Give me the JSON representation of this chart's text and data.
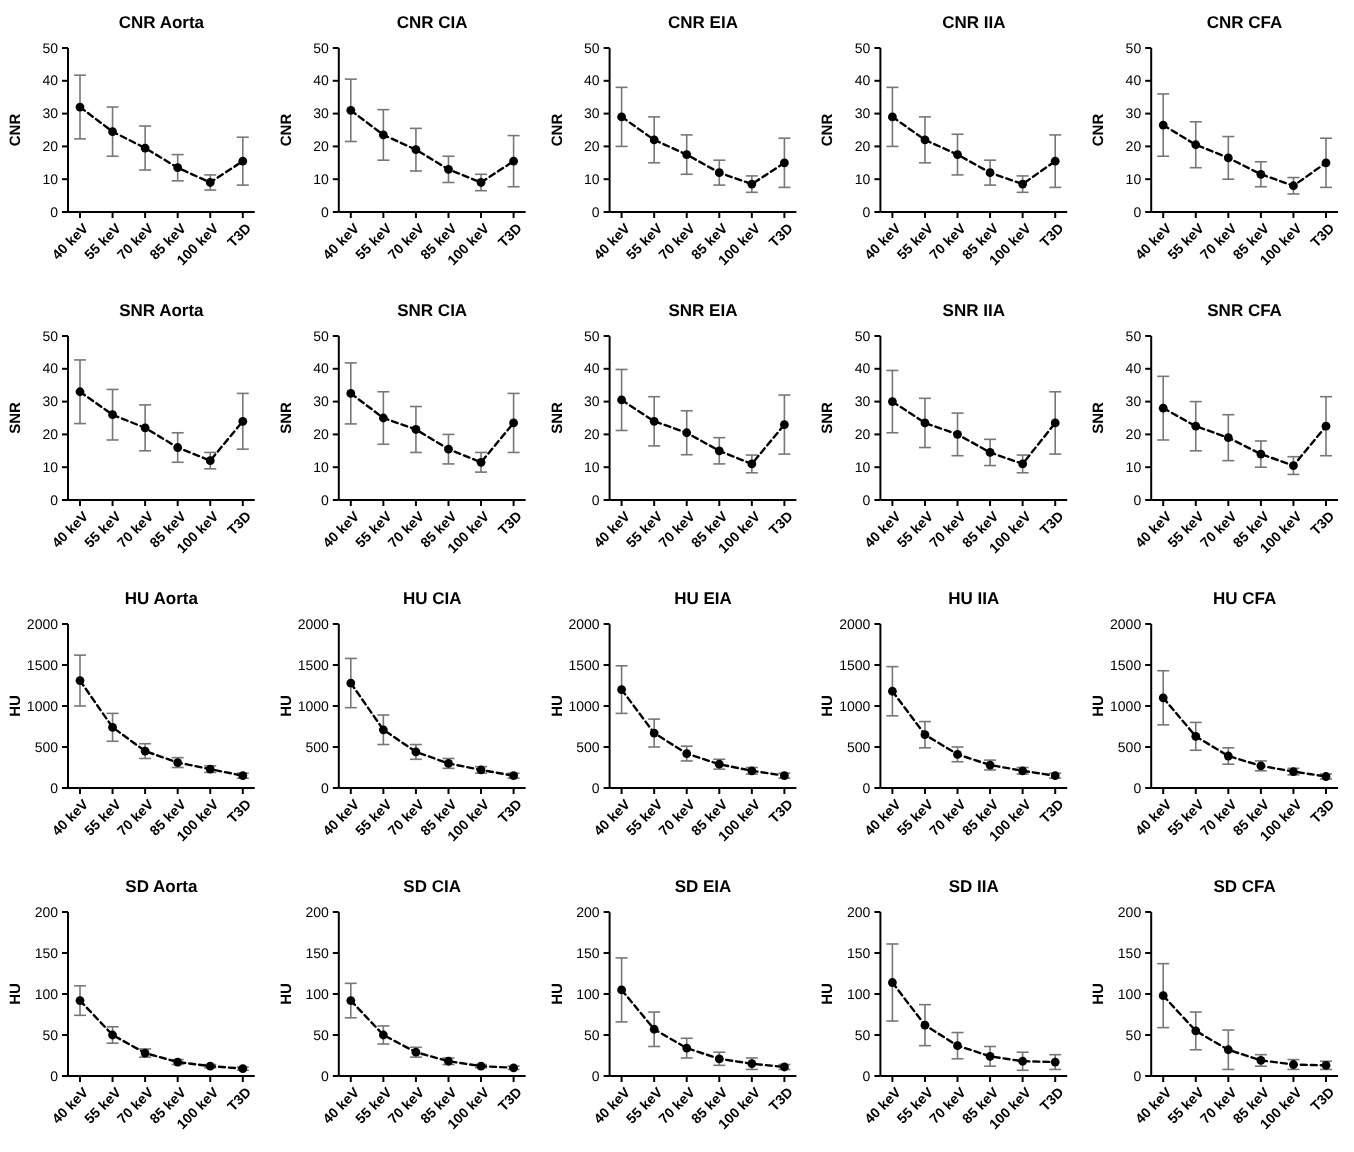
{
  "chart_data": [
    {
      "type": "line",
      "title": "CNR Aorta",
      "ylabel": "CNR",
      "categories": [
        "40 keV",
        "55 keV",
        "70 keV",
        "85 keV",
        "100 keV",
        "T3D"
      ],
      "ylim": [
        0,
        50
      ],
      "yticks": [
        0,
        10,
        20,
        30,
        40,
        50
      ],
      "color": "#000000",
      "marker": "circle",
      "line_style": "dashed",
      "values": [
        32,
        24.5,
        19.5,
        13.5,
        9,
        15.5
      ],
      "errors": [
        9.7,
        7.5,
        6.7,
        4,
        2.3,
        7.3
      ]
    },
    {
      "type": "line",
      "title": "CNR CIA",
      "ylabel": "CNR",
      "categories": [
        "40 keV",
        "55 keV",
        "70 keV",
        "85 keV",
        "100 keV",
        "T3D"
      ],
      "ylim": [
        0,
        50
      ],
      "yticks": [
        0,
        10,
        20,
        30,
        40,
        50
      ],
      "color": "#000000",
      "marker": "circle",
      "line_style": "dashed",
      "values": [
        31,
        23.5,
        19,
        13,
        9,
        15.5
      ],
      "errors": [
        9.5,
        7.7,
        6.5,
        4,
        2.5,
        7.8
      ]
    },
    {
      "type": "line",
      "title": "CNR EIA",
      "ylabel": "CNR",
      "categories": [
        "40 keV",
        "55 keV",
        "70 keV",
        "85 keV",
        "100 keV",
        "T3D"
      ],
      "ylim": [
        0,
        50
      ],
      "yticks": [
        0,
        10,
        20,
        30,
        40,
        50
      ],
      "color": "#000000",
      "marker": "circle",
      "line_style": "dashed",
      "values": [
        29,
        22,
        17.5,
        12,
        8.5,
        15
      ],
      "errors": [
        9,
        7,
        6,
        3.8,
        2.5,
        7.5
      ]
    },
    {
      "type": "line",
      "title": "CNR IIA",
      "ylabel": "CNR",
      "categories": [
        "40 keV",
        "55 keV",
        "70 keV",
        "85 keV",
        "100 keV",
        "T3D"
      ],
      "ylim": [
        0,
        50
      ],
      "yticks": [
        0,
        10,
        20,
        30,
        40,
        50
      ],
      "color": "#000000",
      "marker": "circle",
      "line_style": "dashed",
      "values": [
        29,
        22,
        17.5,
        12,
        8.5,
        15.5
      ],
      "errors": [
        9,
        7,
        6.2,
        3.8,
        2.5,
        8
      ]
    },
    {
      "type": "line",
      "title": "CNR CFA",
      "ylabel": "CNR",
      "categories": [
        "40 keV",
        "55 keV",
        "70 keV",
        "85 keV",
        "100 keV",
        "T3D"
      ],
      "ylim": [
        0,
        50
      ],
      "yticks": [
        0,
        10,
        20,
        30,
        40,
        50
      ],
      "color": "#000000",
      "marker": "circle",
      "line_style": "dashed",
      "values": [
        26.5,
        20.5,
        16.5,
        11.5,
        8,
        15
      ],
      "errors": [
        9.5,
        7,
        6.5,
        3.8,
        2.5,
        7.5
      ]
    },
    {
      "type": "line",
      "title": "SNR Aorta",
      "ylabel": "SNR",
      "categories": [
        "40 keV",
        "55 keV",
        "70 keV",
        "85 keV",
        "100 keV",
        "T3D"
      ],
      "ylim": [
        0,
        50
      ],
      "yticks": [
        0,
        10,
        20,
        30,
        40,
        50
      ],
      "color": "#000000",
      "marker": "circle",
      "line_style": "dashed",
      "values": [
        33,
        26,
        22,
        16,
        12,
        24
      ],
      "errors": [
        9.7,
        7.7,
        7,
        4.5,
        2.5,
        8.5
      ]
    },
    {
      "type": "line",
      "title": "SNR CIA",
      "ylabel": "SNR",
      "categories": [
        "40 keV",
        "55 keV",
        "70 keV",
        "85 keV",
        "100 keV",
        "T3D"
      ],
      "ylim": [
        0,
        50
      ],
      "yticks": [
        0,
        10,
        20,
        30,
        40,
        50
      ],
      "color": "#000000",
      "marker": "circle",
      "line_style": "dashed",
      "values": [
        32.5,
        25,
        21.5,
        15.5,
        11.5,
        23.5
      ],
      "errors": [
        9.3,
        8,
        7,
        4.5,
        3,
        9
      ]
    },
    {
      "type": "line",
      "title": "SNR EIA",
      "ylabel": "SNR",
      "categories": [
        "40 keV",
        "55 keV",
        "70 keV",
        "85 keV",
        "100 keV",
        "T3D"
      ],
      "ylim": [
        0,
        50
      ],
      "yticks": [
        0,
        10,
        20,
        30,
        40,
        50
      ],
      "color": "#000000",
      "marker": "circle",
      "line_style": "dashed",
      "values": [
        30.5,
        24,
        20.5,
        15,
        11,
        23
      ],
      "errors": [
        9.3,
        7.5,
        6.7,
        4,
        2.7,
        9
      ]
    },
    {
      "type": "line",
      "title": "SNR IIA",
      "ylabel": "SNR",
      "categories": [
        "40 keV",
        "55 keV",
        "70 keV",
        "85 keV",
        "100 keV",
        "T3D"
      ],
      "ylim": [
        0,
        50
      ],
      "yticks": [
        0,
        10,
        20,
        30,
        40,
        50
      ],
      "color": "#000000",
      "marker": "circle",
      "line_style": "dashed",
      "values": [
        30,
        23.5,
        20,
        14.5,
        11,
        23.5
      ],
      "errors": [
        9.5,
        7.5,
        6.5,
        4,
        2.7,
        9.5
      ]
    },
    {
      "type": "line",
      "title": "SNR CFA",
      "ylabel": "SNR",
      "categories": [
        "40 keV",
        "55 keV",
        "70 keV",
        "85 keV",
        "100 keV",
        "T3D"
      ],
      "ylim": [
        0,
        50
      ],
      "yticks": [
        0,
        10,
        20,
        30,
        40,
        50
      ],
      "color": "#000000",
      "marker": "circle",
      "line_style": "dashed",
      "values": [
        28,
        22.5,
        19,
        14,
        10.5,
        22.5
      ],
      "errors": [
        9.7,
        7.5,
        7,
        4,
        2.7,
        9
      ]
    },
    {
      "type": "line",
      "title": "HU Aorta",
      "ylabel": "HU",
      "categories": [
        "40 keV",
        "55 keV",
        "70 keV",
        "85 keV",
        "100 keV",
        "T3D"
      ],
      "ylim": [
        0,
        2000
      ],
      "yticks": [
        0,
        500,
        1000,
        1500,
        2000
      ],
      "color": "#000000",
      "marker": "circle",
      "line_style": "dashed",
      "values": [
        1310,
        740,
        450,
        310,
        230,
        150
      ],
      "errors": [
        310,
        170,
        90,
        60,
        40,
        30
      ]
    },
    {
      "type": "line",
      "title": "HU CIA",
      "ylabel": "HU",
      "categories": [
        "40 keV",
        "55 keV",
        "70 keV",
        "85 keV",
        "100 keV",
        "T3D"
      ],
      "ylim": [
        0,
        2000
      ],
      "yticks": [
        0,
        500,
        1000,
        1500,
        2000
      ],
      "color": "#000000",
      "marker": "circle",
      "line_style": "dashed",
      "values": [
        1280,
        710,
        440,
        300,
        220,
        150
      ],
      "errors": [
        300,
        180,
        90,
        60,
        40,
        30
      ]
    },
    {
      "type": "line",
      "title": "HU EIA",
      "ylabel": "HU",
      "categories": [
        "40 keV",
        "55 keV",
        "70 keV",
        "85 keV",
        "100 keV",
        "T3D"
      ],
      "ylim": [
        0,
        2000
      ],
      "yticks": [
        0,
        500,
        1000,
        1500,
        2000
      ],
      "color": "#000000",
      "marker": "circle",
      "line_style": "dashed",
      "values": [
        1200,
        670,
        420,
        290,
        210,
        150
      ],
      "errors": [
        290,
        170,
        90,
        60,
        40,
        30
      ]
    },
    {
      "type": "line",
      "title": "HU IIA",
      "ylabel": "HU",
      "categories": [
        "40 keV",
        "55 keV",
        "70 keV",
        "85 keV",
        "100 keV",
        "T3D"
      ],
      "ylim": [
        0,
        2000
      ],
      "yticks": [
        0,
        500,
        1000,
        1500,
        2000
      ],
      "color": "#000000",
      "marker": "circle",
      "line_style": "dashed",
      "values": [
        1180,
        650,
        410,
        280,
        210,
        150
      ],
      "errors": [
        300,
        160,
        90,
        60,
        40,
        30
      ]
    },
    {
      "type": "line",
      "title": "HU CFA",
      "ylabel": "HU",
      "categories": [
        "40 keV",
        "55 keV",
        "70 keV",
        "85 keV",
        "100 keV",
        "T3D"
      ],
      "ylim": [
        0,
        2000
      ],
      "yticks": [
        0,
        500,
        1000,
        1500,
        2000
      ],
      "color": "#000000",
      "marker": "circle",
      "line_style": "dashed",
      "values": [
        1100,
        630,
        390,
        270,
        200,
        140
      ],
      "errors": [
        330,
        170,
        100,
        60,
        40,
        30
      ]
    },
    {
      "type": "line",
      "title": "SD Aorta",
      "ylabel": "HU",
      "categories": [
        "40 keV",
        "55 keV",
        "70 keV",
        "85 keV",
        "100 keV",
        "T3D"
      ],
      "ylim": [
        0,
        200
      ],
      "yticks": [
        0,
        50,
        100,
        150,
        200
      ],
      "color": "#000000",
      "marker": "circle",
      "line_style": "dashed",
      "values": [
        92,
        50,
        28,
        17,
        12,
        9
      ],
      "errors": [
        18,
        10,
        5,
        3,
        2,
        2
      ]
    },
    {
      "type": "line",
      "title": "SD CIA",
      "ylabel": "HU",
      "categories": [
        "40 keV",
        "55 keV",
        "70 keV",
        "85 keV",
        "100 keV",
        "T3D"
      ],
      "ylim": [
        0,
        200
      ],
      "yticks": [
        0,
        50,
        100,
        150,
        200
      ],
      "color": "#000000",
      "marker": "circle",
      "line_style": "dashed",
      "values": [
        92,
        50,
        29,
        18,
        12,
        10
      ],
      "errors": [
        21,
        11,
        6,
        4,
        2,
        2
      ]
    },
    {
      "type": "line",
      "title": "SD EIA",
      "ylabel": "HU",
      "categories": [
        "40 keV",
        "55 keV",
        "70 keV",
        "85 keV",
        "100 keV",
        "T3D"
      ],
      "ylim": [
        0,
        200
      ],
      "yticks": [
        0,
        50,
        100,
        150,
        200
      ],
      "color": "#000000",
      "marker": "circle",
      "line_style": "dashed",
      "values": [
        105,
        57,
        34,
        21,
        15,
        11
      ],
      "errors": [
        39,
        21,
        12,
        8,
        7,
        3
      ]
    },
    {
      "type": "line",
      "title": "SD IIA",
      "ylabel": "HU",
      "categories": [
        "40 keV",
        "55 keV",
        "70 keV",
        "85 keV",
        "100 keV",
        "T3D"
      ],
      "ylim": [
        0,
        200
      ],
      "yticks": [
        0,
        50,
        100,
        150,
        200
      ],
      "color": "#000000",
      "marker": "circle",
      "line_style": "dashed",
      "values": [
        114,
        62,
        37,
        24,
        18,
        17
      ],
      "errors": [
        47,
        25,
        16,
        12,
        11,
        9
      ]
    },
    {
      "type": "line",
      "title": "SD CFA",
      "ylabel": "HU",
      "categories": [
        "40 keV",
        "55 keV",
        "70 keV",
        "85 keV",
        "100 keV",
        "T3D"
      ],
      "ylim": [
        0,
        200
      ],
      "yticks": [
        0,
        50,
        100,
        150,
        200
      ],
      "color": "#000000",
      "marker": "circle",
      "line_style": "dashed",
      "values": [
        98,
        55,
        32,
        19,
        14,
        13
      ],
      "errors": [
        39,
        23,
        24,
        7,
        6,
        5
      ]
    }
  ]
}
